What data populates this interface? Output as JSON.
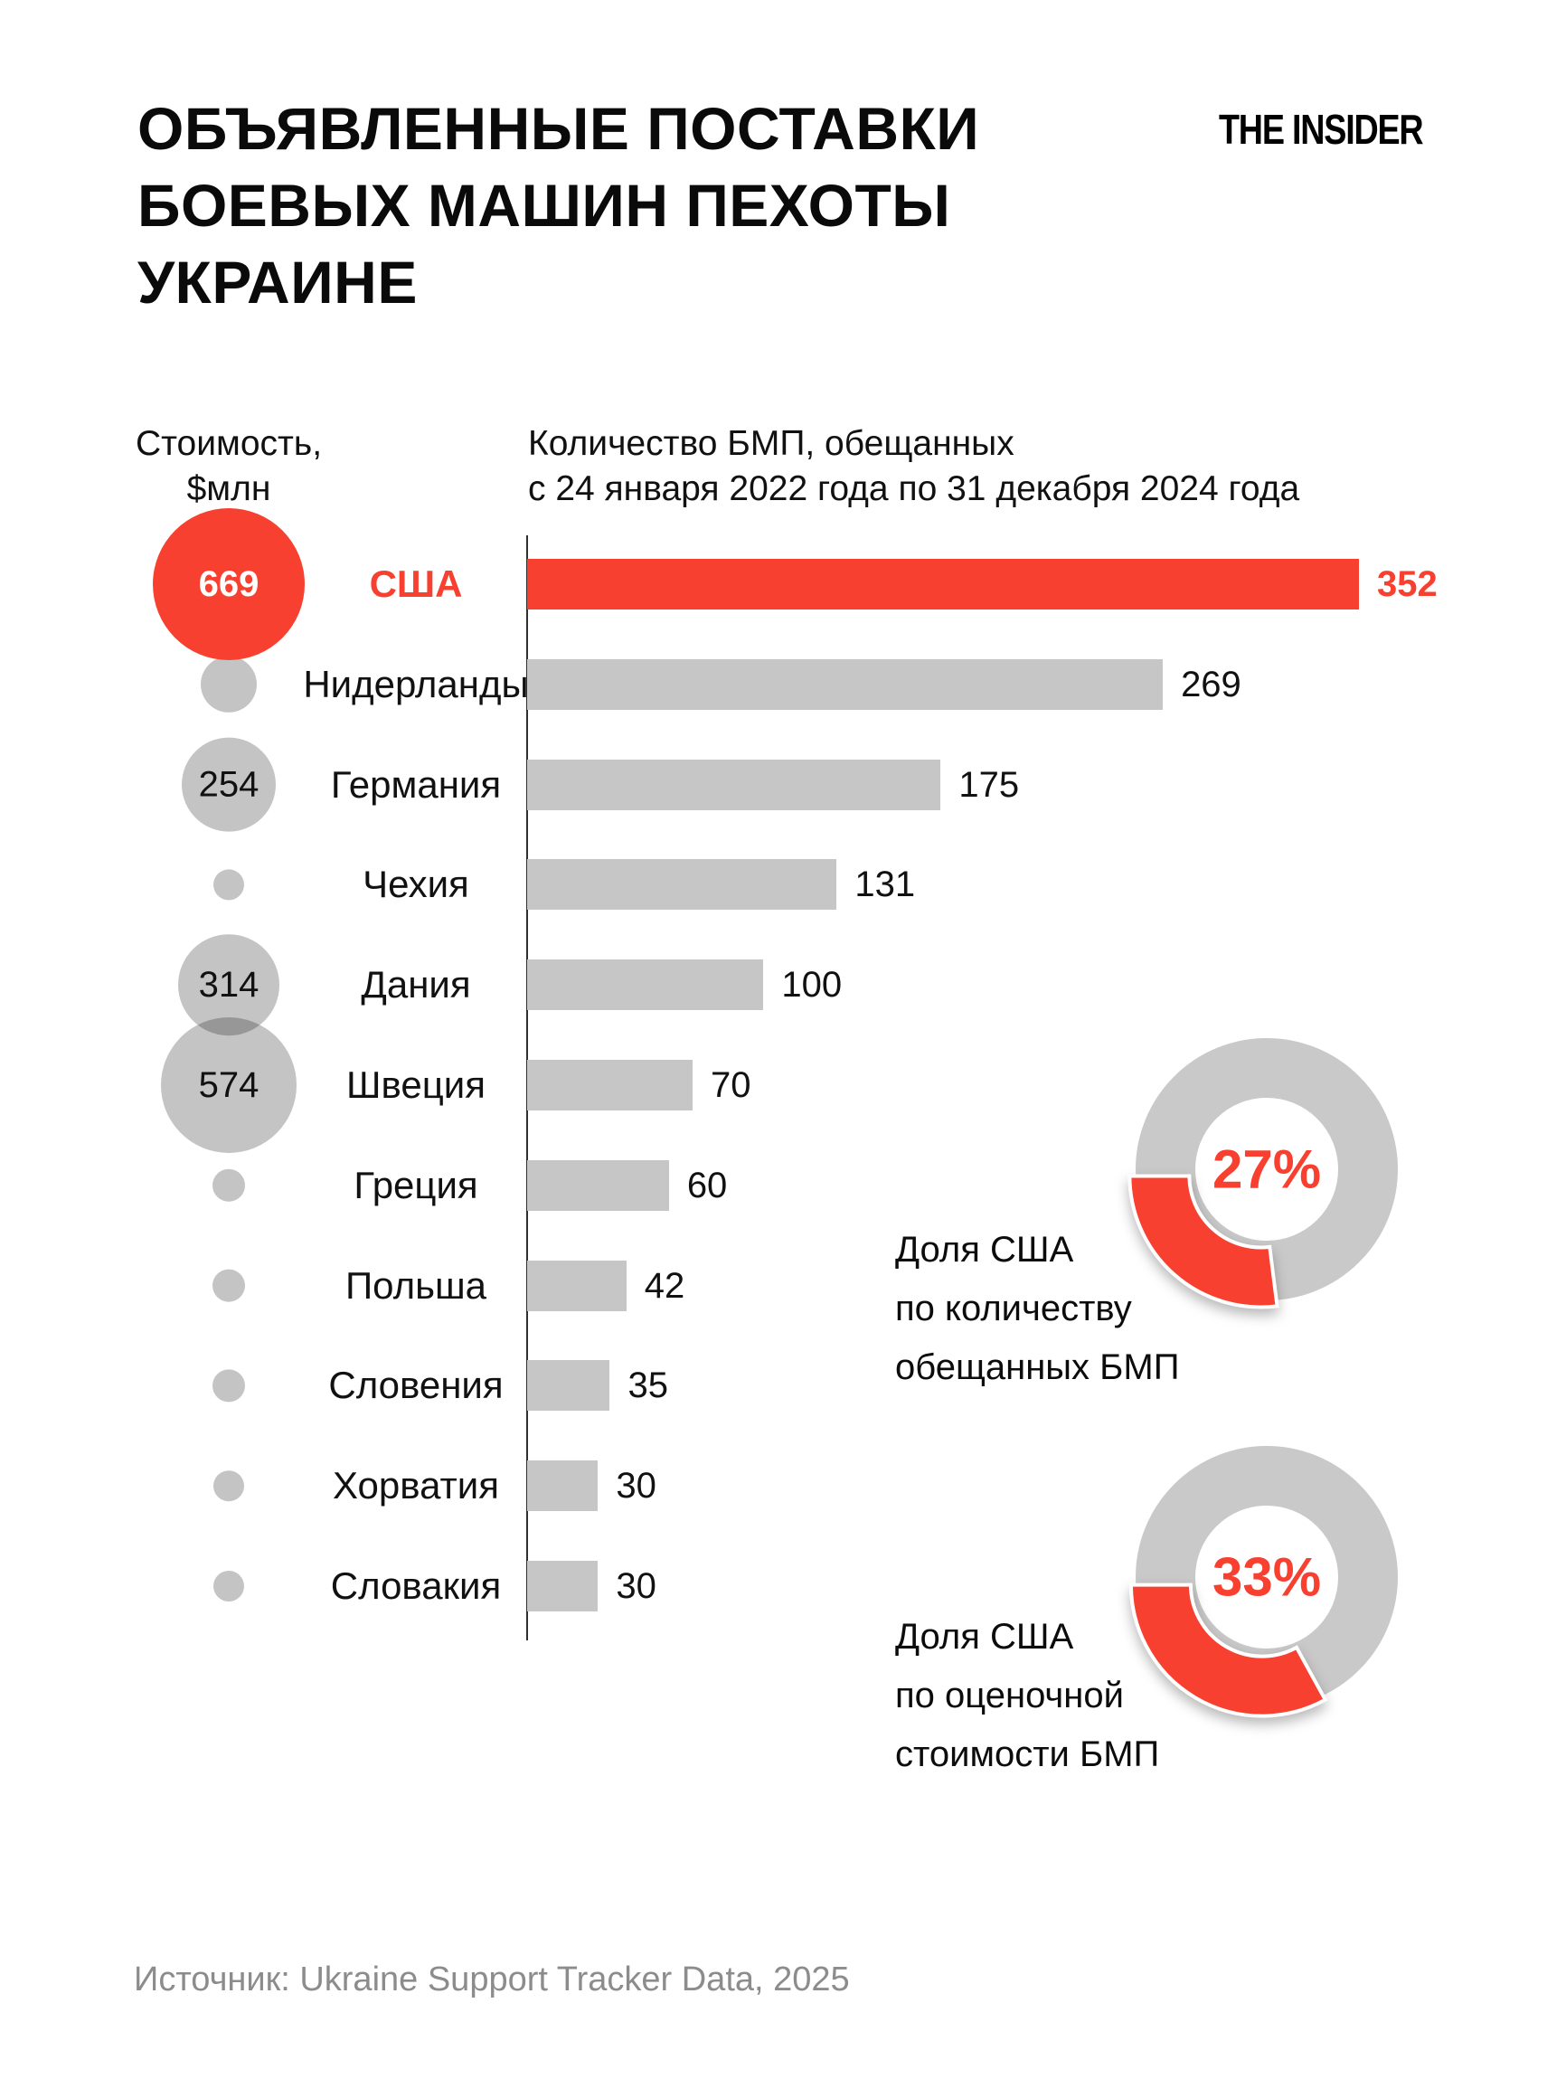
{
  "title": "ОБЪЯВЛЕННЫЕ ПОСТАВКИ\nБОЕВЫХ МАШИН ПЕХОТЫ\nУКРАИНЕ",
  "logo": "THE INSIDER",
  "columns": {
    "cost_header": "Стоимость,\n$млн",
    "qty_header": "Количество БМП, обещанных\nс 24 января 2022 года по 31 декабря 2024 года"
  },
  "colors": {
    "red": "#F7402F",
    "bar_gray": "#C6C6C6",
    "bubble_gray": "#C4C4C4",
    "donut_gray": "#C9C9C9",
    "axis_dark": "#2F2F2F",
    "text_dark": "#0F0F0F",
    "source_gray": "#8C8C8C"
  },
  "chart_data": {
    "type": "bar",
    "title": "Объявленные поставки боевых машин пехоты Украине",
    "xlabel": "Количество БМП, обещанных с 24 января 2022 года по 31 декабря 2024 года",
    "bubble_legend": "Стоимость, $млн",
    "xlim": [
      0,
      352
    ],
    "grid": false,
    "categories": [
      "США",
      "Нидерланды",
      "Германия",
      "Чехия",
      "Дания",
      "Швеция",
      "Греция",
      "Польша",
      "Словения",
      "Хорватия",
      "Словакия"
    ],
    "rows": [
      {
        "country": "США",
        "qty": 352,
        "cost_musd": 669,
        "highlight": true,
        "bubble_r": 84
      },
      {
        "country": "Нидерланды",
        "qty": 269,
        "cost_musd": null,
        "highlight": false,
        "bubble_r": 31
      },
      {
        "country": "Германия",
        "qty": 175,
        "cost_musd": 254,
        "highlight": false,
        "bubble_r": 52
      },
      {
        "country": "Чехия",
        "qty": 131,
        "cost_musd": null,
        "highlight": false,
        "bubble_r": 17
      },
      {
        "country": "Дания",
        "qty": 100,
        "cost_musd": 314,
        "highlight": false,
        "bubble_r": 56
      },
      {
        "country": "Швеция",
        "qty": 70,
        "cost_musd": 574,
        "highlight": false,
        "bubble_r": 75
      },
      {
        "country": "Греция",
        "qty": 60,
        "cost_musd": null,
        "highlight": false,
        "bubble_r": 18
      },
      {
        "country": "Польша",
        "qty": 42,
        "cost_musd": null,
        "highlight": false,
        "bubble_r": 18
      },
      {
        "country": "Словения",
        "qty": 35,
        "cost_musd": null,
        "highlight": false,
        "bubble_r": 18
      },
      {
        "country": "Хорватия",
        "qty": 30,
        "cost_musd": null,
        "highlight": false,
        "bubble_r": 17
      },
      {
        "country": "Словакия",
        "qty": 30,
        "cost_musd": null,
        "highlight": false,
        "bubble_r": 17
      }
    ],
    "donuts": [
      {
        "pct": 27,
        "pct_label": "27%",
        "label": "Доля США\nпо количеству\nобещанных БМП"
      },
      {
        "pct": 33,
        "pct_label": "33%",
        "label": "Доля США\nпо оценочной\nстоимости БМП"
      }
    ]
  },
  "source": "Источник: Ukraine Support Tracker Data, 2025"
}
